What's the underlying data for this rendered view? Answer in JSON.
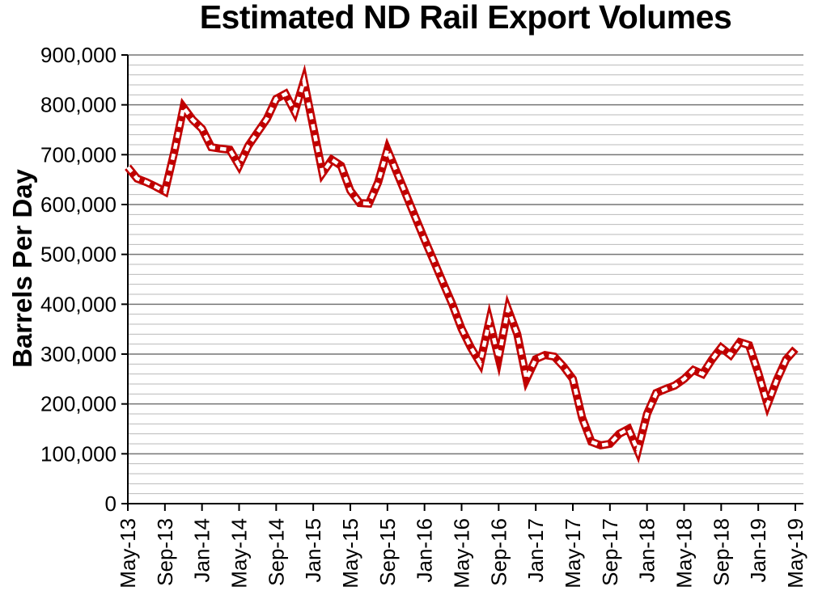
{
  "chart_data": {
    "type": "line",
    "title": "Estimated ND Rail Export Volumes",
    "xlabel": "",
    "ylabel": "Barrels Per Day",
    "ylim": [
      0,
      900000
    ],
    "y_major_step": 100000,
    "y_minor_step": 20000,
    "grid": "on",
    "legend": "none",
    "x_tick_step": 4,
    "y_tick_labels": [
      "0",
      "100,000",
      "200,000",
      "300,000",
      "400,000",
      "500,000",
      "600,000",
      "700,000",
      "800,000",
      "900,000"
    ],
    "x_tick_labels": [
      "May-13",
      "Sep-13",
      "Jan-14",
      "May-14",
      "Sep-14",
      "Jan-15",
      "May-15",
      "Sep-15",
      "Jan-16",
      "May-16",
      "Sep-16",
      "Jan-17",
      "May-17",
      "Sep-17",
      "Jan-18",
      "May-18",
      "Sep-18",
      "Jan-19",
      "May-19"
    ],
    "categories": [
      "May-13",
      "Jun-13",
      "Jul-13",
      "Aug-13",
      "Sep-13",
      "Oct-13",
      "Nov-13",
      "Dec-13",
      "Jan-14",
      "Feb-14",
      "Mar-14",
      "Apr-14",
      "May-14",
      "Jun-14",
      "Jul-14",
      "Aug-14",
      "Sep-14",
      "Oct-14",
      "Nov-14",
      "Dec-14",
      "Jan-15",
      "Feb-15",
      "Mar-15",
      "Apr-15",
      "May-15",
      "Jun-15",
      "Jul-15",
      "Aug-15",
      "Sep-15",
      "Oct-15",
      "Nov-15",
      "Dec-15",
      "Jan-16",
      "Feb-16",
      "Mar-16",
      "Apr-16",
      "May-16",
      "Jun-16",
      "Jul-16",
      "Aug-16",
      "Sep-16",
      "Oct-16",
      "Nov-16",
      "Dec-16",
      "Jan-17",
      "Feb-17",
      "Mar-17",
      "Apr-17",
      "May-17",
      "Jun-17",
      "Jul-17",
      "Aug-17",
      "Sep-17",
      "Oct-17",
      "Nov-17",
      "Dec-17",
      "Jan-18",
      "Feb-18",
      "Mar-18",
      "Apr-18",
      "May-18",
      "Jun-18",
      "Jul-18",
      "Aug-18",
      "Sep-18",
      "Oct-18",
      "Nov-18",
      "Dec-18",
      "Jan-19",
      "Feb-19",
      "Mar-19",
      "Apr-19",
      "May-19"
    ],
    "values": [
      675000,
      652000,
      645000,
      636000,
      626000,
      705000,
      795000,
      770000,
      752000,
      715000,
      712000,
      710000,
      678000,
      718000,
      745000,
      772000,
      812000,
      822000,
      786000,
      848000,
      755000,
      663000,
      690000,
      678000,
      628000,
      603000,
      602000,
      645000,
      710000,
      665000,
      620000,
      575000,
      530000,
      487000,
      443000,
      400000,
      351000,
      313000,
      282000,
      367000,
      292000,
      390000,
      340000,
      250000,
      290000,
      298000,
      295000,
      275000,
      250000,
      172000,
      124000,
      117000,
      120000,
      140000,
      150000,
      106000,
      180000,
      222000,
      230000,
      237000,
      250000,
      268000,
      260000,
      289000,
      313000,
      298000,
      324000,
      318000,
      262000,
      199000,
      248000,
      289000,
      310000
    ],
    "colors": {
      "line": "#C00000",
      "line_dash": "#FFFFFF",
      "major_grid": "#757575",
      "minor_grid": "#B9B9B9",
      "axis": "#000000",
      "text": "#000000",
      "background": "#FFFFFF"
    }
  }
}
